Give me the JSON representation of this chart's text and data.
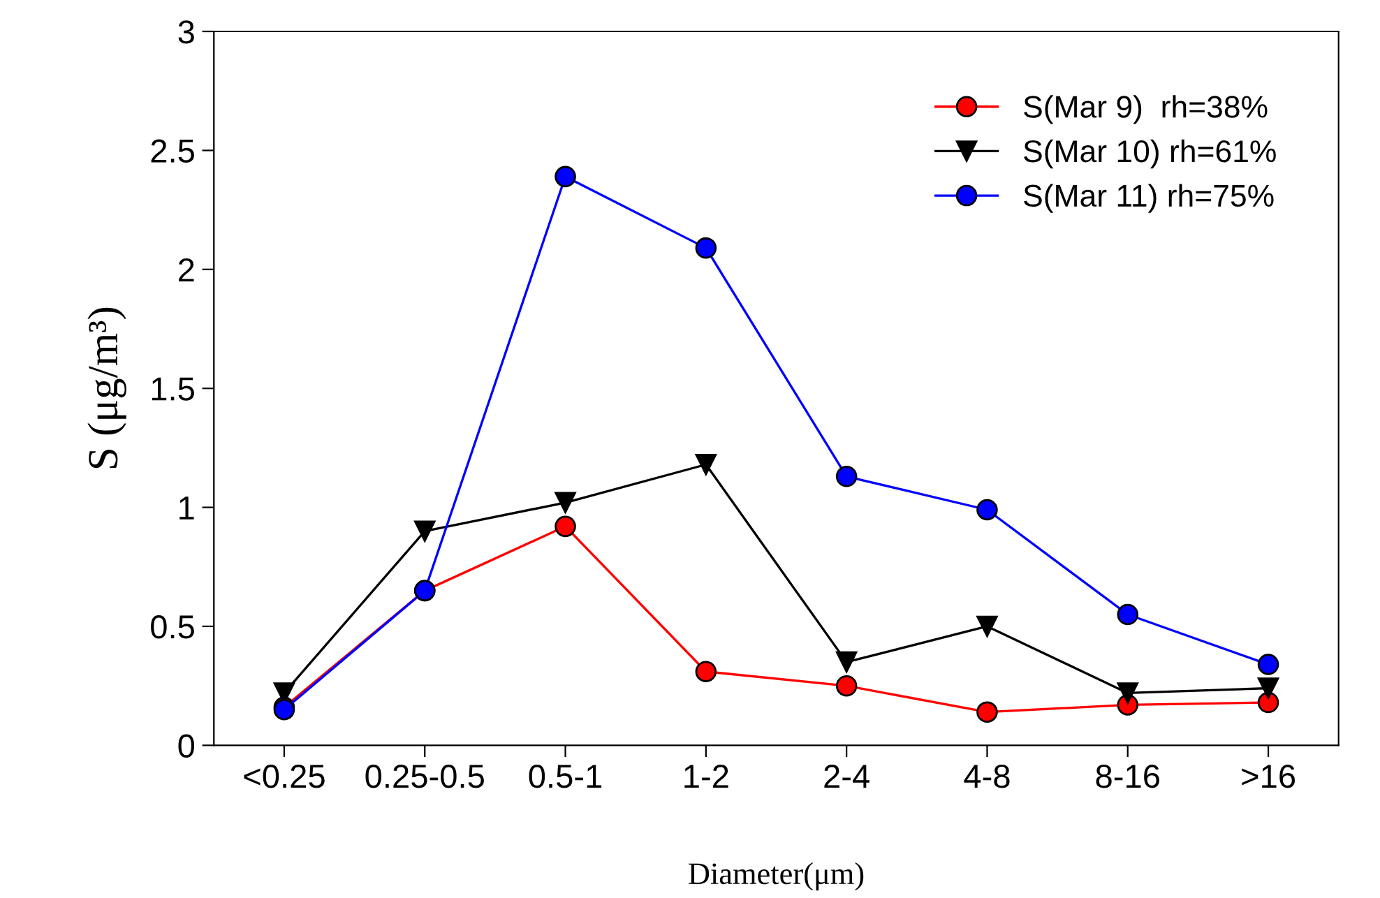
{
  "chart_data": {
    "type": "line",
    "xlabel": "Diameter(μm)",
    "ylabel": "S (μg/m³)",
    "categories": [
      "<0.25",
      "0.25-0.5",
      "0.5-1",
      "1-2",
      "2-4",
      "4-8",
      "8-16",
      ">16"
    ],
    "series": [
      {
        "name": "S(Mar 9)  rh=38%",
        "color": "#ff0000",
        "marker": "circle",
        "values": [
          0.16,
          0.65,
          0.92,
          0.31,
          0.25,
          0.14,
          0.17,
          0.18
        ]
      },
      {
        "name": "S(Mar 10) rh=61%",
        "color": "#000000",
        "marker": "triangle",
        "values": [
          0.22,
          0.9,
          1.02,
          1.18,
          0.35,
          0.5,
          0.22,
          0.24
        ]
      },
      {
        "name": "S(Mar 11) rh=75%",
        "color": "#0000ff",
        "marker": "circle",
        "values": [
          0.15,
          0.65,
          2.39,
          2.09,
          1.13,
          0.99,
          0.55,
          0.34
        ]
      }
    ],
    "ylim": [
      0,
      3
    ],
    "yticks": [
      0,
      0.5,
      1,
      1.5,
      2,
      2.5,
      3
    ],
    "grid": false,
    "legend": "top right",
    "line_style": "solid"
  }
}
